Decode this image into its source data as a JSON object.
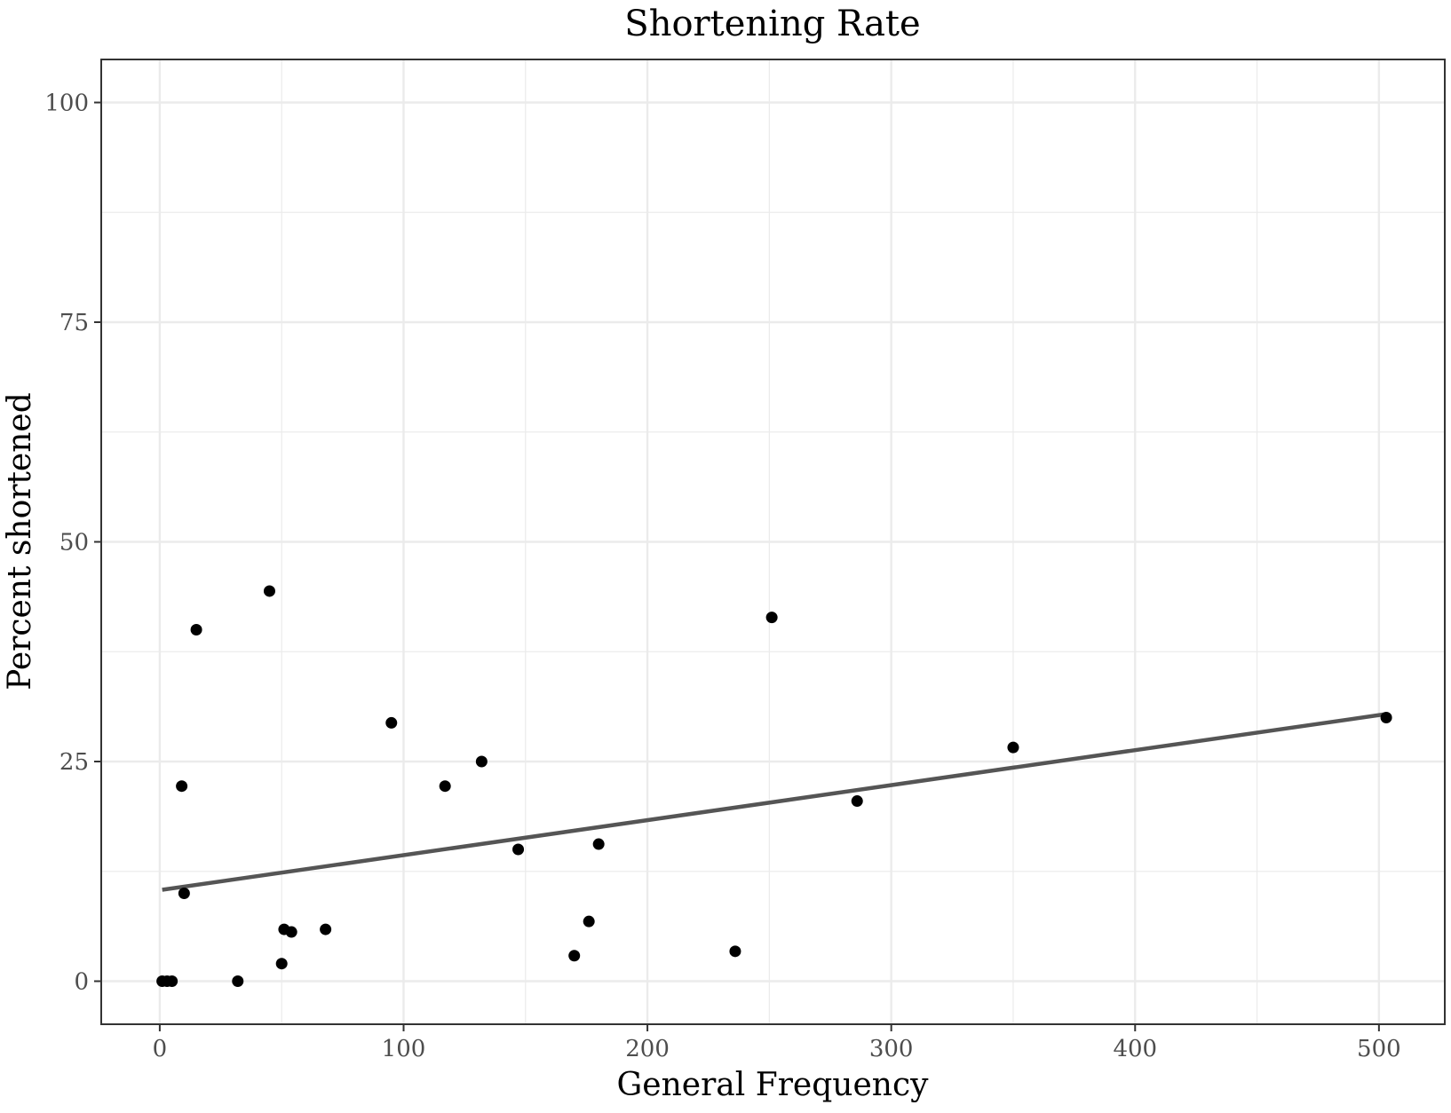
{
  "chart_data": {
    "type": "scatter",
    "title": "Shortening Rate",
    "xlabel": "General Frequency",
    "ylabel": "Percent shortened",
    "xlim": [
      -24,
      527
    ],
    "ylim": [
      -4.9,
      104.9
    ],
    "x_ticks": [
      0,
      100,
      200,
      300,
      400,
      500
    ],
    "y_ticks": [
      0,
      25,
      50,
      75,
      100
    ],
    "x_tick_labels": [
      "0",
      "100",
      "200",
      "300",
      "400",
      "500"
    ],
    "y_tick_labels": [
      "0",
      "25",
      "50",
      "75",
      "100"
    ],
    "grid": true,
    "legend": "none",
    "points": [
      {
        "x": 1,
        "y": 0
      },
      {
        "x": 3,
        "y": 0
      },
      {
        "x": 5,
        "y": 0
      },
      {
        "x": 9,
        "y": 22.2
      },
      {
        "x": 10,
        "y": 10
      },
      {
        "x": 15,
        "y": 40
      },
      {
        "x": 32,
        "y": 0
      },
      {
        "x": 45,
        "y": 44.4
      },
      {
        "x": 50,
        "y": 2
      },
      {
        "x": 51,
        "y": 5.9
      },
      {
        "x": 54,
        "y": 5.6
      },
      {
        "x": 68,
        "y": 5.9
      },
      {
        "x": 95,
        "y": 29.4
      },
      {
        "x": 117,
        "y": 22.2
      },
      {
        "x": 132,
        "y": 25
      },
      {
        "x": 147,
        "y": 15
      },
      {
        "x": 170,
        "y": 2.9
      },
      {
        "x": 176,
        "y": 6.8
      },
      {
        "x": 180,
        "y": 15.6
      },
      {
        "x": 236,
        "y": 3.4
      },
      {
        "x": 251,
        "y": 41.4
      },
      {
        "x": 286,
        "y": 20.5
      },
      {
        "x": 350,
        "y": 26.6
      },
      {
        "x": 503,
        "y": 30
      }
    ],
    "trend_line": {
      "x": [
        1,
        503
      ],
      "y": [
        10.4,
        30.4
      ]
    },
    "colors": {
      "points": "#000000",
      "trend_line": "#555555",
      "grid": "#ebebeb",
      "panel_border": "#333333",
      "tick_label": "#4d4d4d"
    }
  }
}
